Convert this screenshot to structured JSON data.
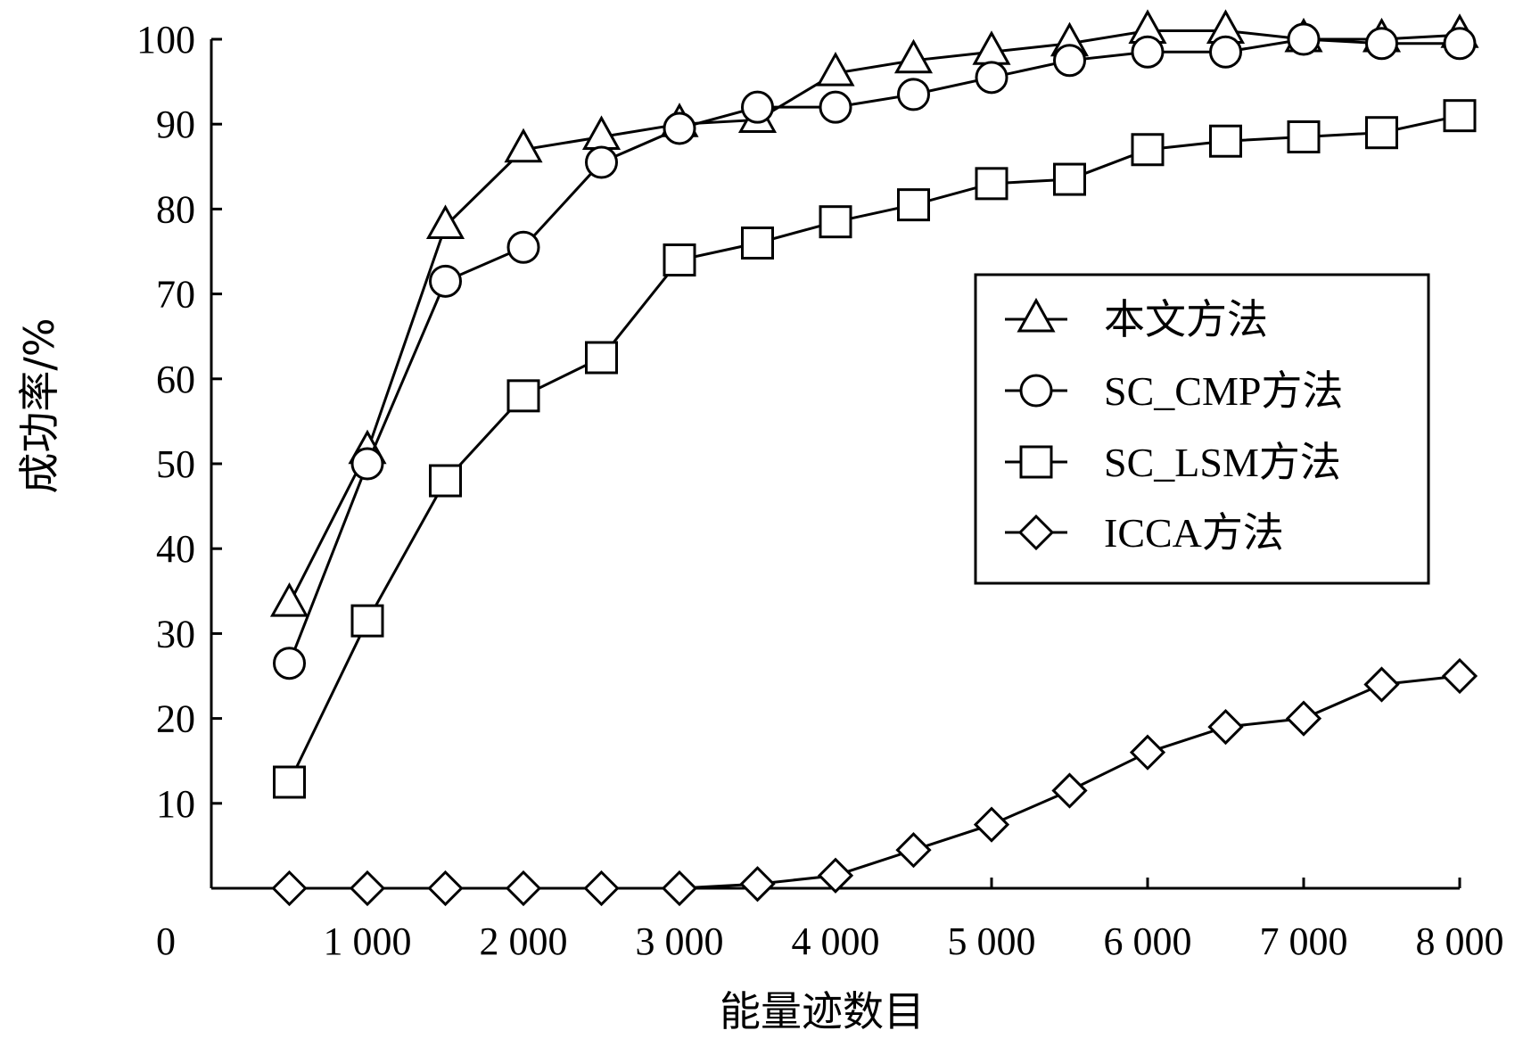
{
  "chart_data": {
    "type": "line",
    "xlabel": "能量迹数目",
    "ylabel": "成功率/%",
    "xlim": [
      0,
      8000
    ],
    "ylim": [
      0,
      100
    ],
    "x_ticks": [
      1000,
      2000,
      3000,
      4000,
      5000,
      6000,
      7000,
      8000
    ],
    "x_tick_labels": [
      "1 000",
      "2 000",
      "3 000",
      "4 000",
      "5 000",
      "6 000",
      "7 000",
      "8 000"
    ],
    "y_ticks": [
      10,
      20,
      30,
      40,
      50,
      60,
      70,
      80,
      90,
      100
    ],
    "y_tick_labels": [
      "10",
      "20",
      "30",
      "40",
      "50",
      "60",
      "70",
      "80",
      "90",
      "100"
    ],
    "origin_label": "0",
    "grid": false,
    "legend_position": "right",
    "x": [
      500,
      1000,
      1500,
      2000,
      2500,
      3000,
      3500,
      4000,
      4500,
      5000,
      5500,
      6000,
      6500,
      7000,
      7500,
      8000
    ],
    "series": [
      {
        "name": "本文方法",
        "marker": "triangle",
        "values": [
          33.5,
          51.5,
          78,
          87,
          88.5,
          90,
          90.5,
          96,
          97.5,
          98.5,
          99.5,
          101,
          101,
          100,
          100,
          100.5
        ]
      },
      {
        "name": "SC_CMP方法",
        "marker": "circle",
        "values": [
          26.5,
          50,
          71.5,
          75.5,
          85.5,
          89.5,
          92,
          92,
          93.5,
          95.5,
          97.5,
          98.5,
          98.5,
          100,
          99.5,
          99.5
        ]
      },
      {
        "name": "SC_LSM方法",
        "marker": "square",
        "values": [
          12.5,
          31.5,
          48,
          58,
          62.5,
          74,
          76,
          78.5,
          80.5,
          83,
          83.5,
          87,
          88,
          88.5,
          89,
          91
        ]
      },
      {
        "name": "ICCA方法",
        "marker": "diamond",
        "values": [
          0,
          0,
          0,
          0,
          0,
          0,
          0.5,
          1.5,
          4.5,
          7.5,
          11.5,
          16,
          19,
          20,
          24,
          25
        ]
      }
    ]
  }
}
